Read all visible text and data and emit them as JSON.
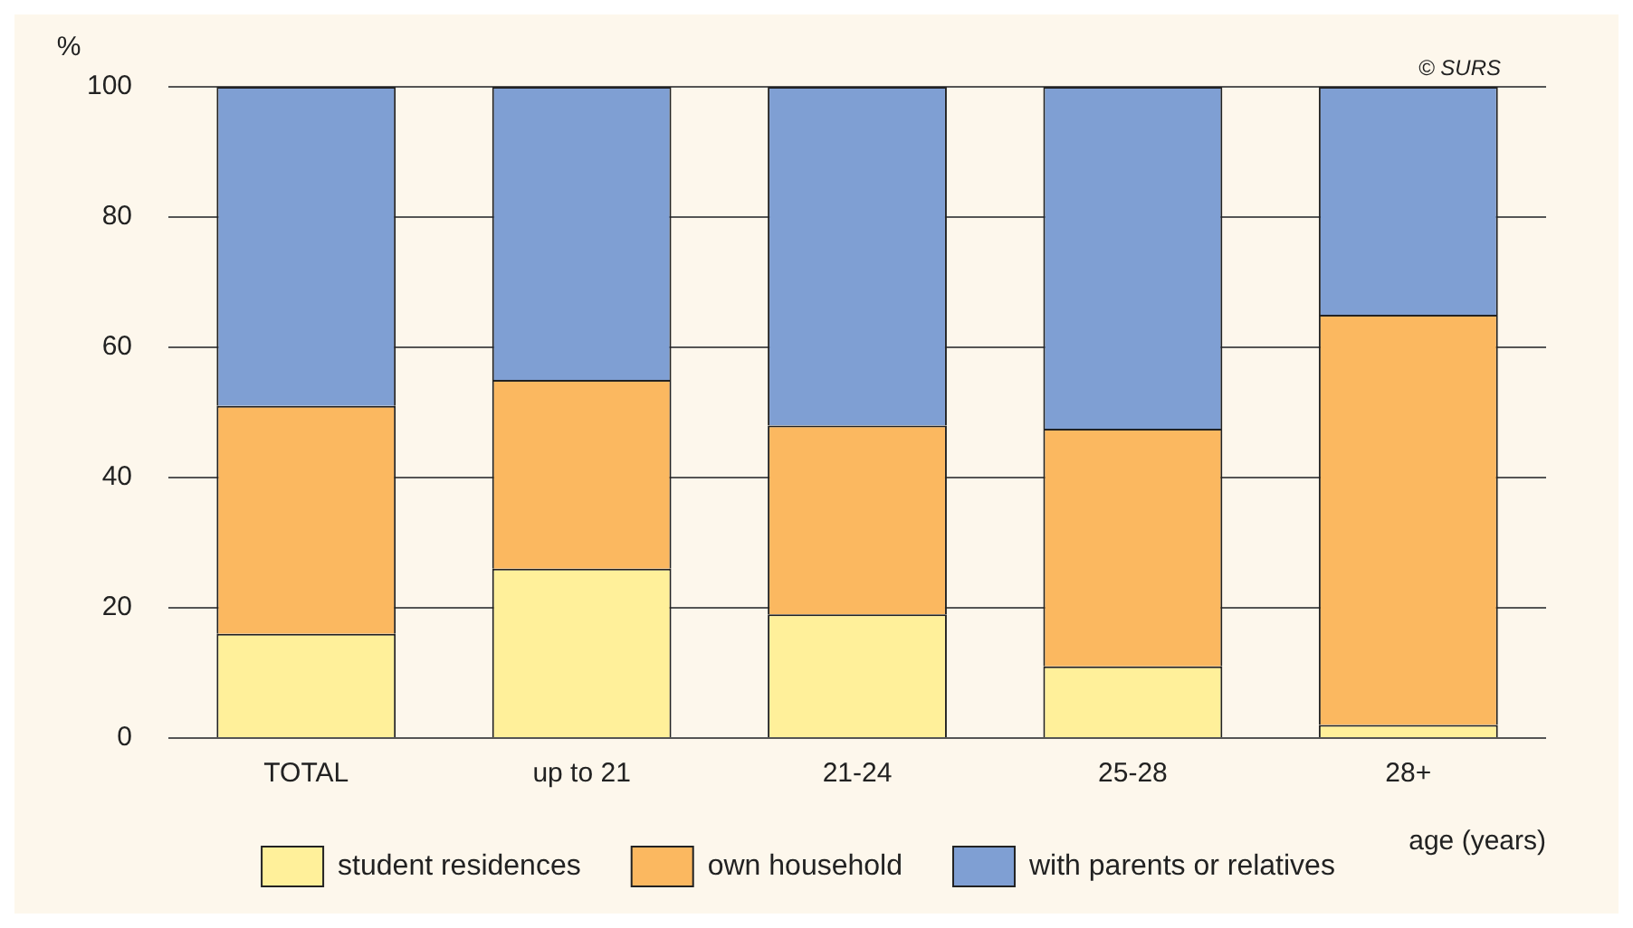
{
  "chart_data": {
    "type": "bar",
    "stacked": true,
    "ylabel": "%",
    "xlabel": "age (years)",
    "annotations": [
      "© SURS"
    ],
    "categories": [
      "TOTAL",
      "up to 21",
      "21-24",
      "25-28",
      "28+"
    ],
    "series": [
      {
        "name": "student residences",
        "color": "#fff09a",
        "values": [
          16,
          26,
          19,
          11,
          2
        ]
      },
      {
        "name": "own household",
        "color": "#fbb860",
        "values": [
          35,
          29,
          29,
          36.5,
          63
        ]
      },
      {
        "name": "with parents or relatives",
        "color": "#7f9fd3",
        "values": [
          49,
          45,
          52,
          52.5,
          35
        ]
      }
    ],
    "ylim": [
      0,
      100
    ],
    "yticks": [
      0,
      20,
      40,
      60,
      80,
      100
    ],
    "grid": "y",
    "legend": "bottom"
  }
}
